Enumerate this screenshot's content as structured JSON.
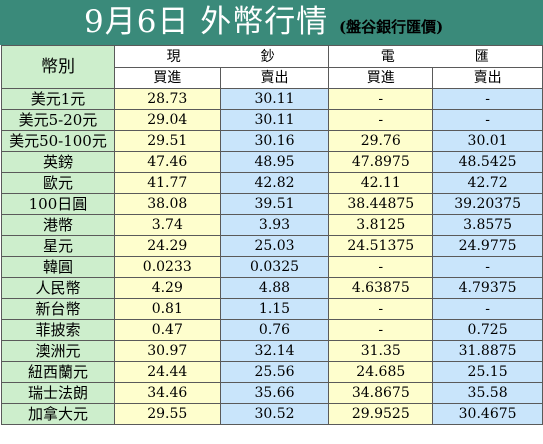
{
  "header": {
    "title": "9月6日 外幣行情",
    "subtitle": "(盤谷銀行匯價)"
  },
  "table": {
    "corner_label": "幣別",
    "cash_group": [
      "現",
      "鈔"
    ],
    "transfer_group": [
      "電",
      "匯"
    ],
    "cash_buy_label": "買進",
    "cash_sell_label": "賣出",
    "transfer_buy_label": "買進",
    "transfer_sell_label": "賣出",
    "rows": [
      {
        "currency": "美元1元",
        "cash_buy": "28.73",
        "cash_sell": "30.11",
        "tt_buy": "-",
        "tt_sell": "-"
      },
      {
        "currency": "美元5-20元",
        "cash_buy": "29.04",
        "cash_sell": "30.11",
        "tt_buy": "-",
        "tt_sell": "-"
      },
      {
        "currency": "美元50-100元",
        "cash_buy": "29.51",
        "cash_sell": "30.16",
        "tt_buy": "29.76",
        "tt_sell": "30.01"
      },
      {
        "currency": "英鎊",
        "cash_buy": "47.46",
        "cash_sell": "48.95",
        "tt_buy": "47.8975",
        "tt_sell": "48.5425"
      },
      {
        "currency": "歐元",
        "cash_buy": "41.77",
        "cash_sell": "42.82",
        "tt_buy": "42.11",
        "tt_sell": "42.72"
      },
      {
        "currency": "100日圓",
        "cash_buy": "38.08",
        "cash_sell": "39.51",
        "tt_buy": "38.44875",
        "tt_sell": "39.20375"
      },
      {
        "currency": "港幣",
        "cash_buy": "3.74",
        "cash_sell": "3.93",
        "tt_buy": "3.8125",
        "tt_sell": "3.8575"
      },
      {
        "currency": "星元",
        "cash_buy": "24.29",
        "cash_sell": "25.03",
        "tt_buy": "24.51375",
        "tt_sell": "24.9775"
      },
      {
        "currency": "韓圓",
        "cash_buy": "0.0233",
        "cash_sell": "0.0325",
        "tt_buy": "-",
        "tt_sell": "-"
      },
      {
        "currency": "人民幣",
        "cash_buy": "4.29",
        "cash_sell": "4.88",
        "tt_buy": "4.63875",
        "tt_sell": "4.79375"
      },
      {
        "currency": "新台幣",
        "cash_buy": "0.81",
        "cash_sell": "1.15",
        "tt_buy": "-",
        "tt_sell": "-"
      },
      {
        "currency": "菲披索",
        "cash_buy": "0.47",
        "cash_sell": "0.76",
        "tt_buy": "-",
        "tt_sell": "0.725"
      },
      {
        "currency": "澳洲元",
        "cash_buy": "30.97",
        "cash_sell": "32.14",
        "tt_buy": "31.35",
        "tt_sell": "31.8875"
      },
      {
        "currency": "紐西蘭元",
        "cash_buy": "24.44",
        "cash_sell": "25.56",
        "tt_buy": "24.685",
        "tt_sell": "25.15"
      },
      {
        "currency": "瑞士法朗",
        "cash_buy": "34.46",
        "cash_sell": "35.66",
        "tt_buy": "34.8675",
        "tt_sell": "35.58"
      },
      {
        "currency": "加拿大元",
        "cash_buy": "29.55",
        "cash_sell": "30.52",
        "tt_buy": "29.9525",
        "tt_sell": "30.4675"
      }
    ]
  }
}
